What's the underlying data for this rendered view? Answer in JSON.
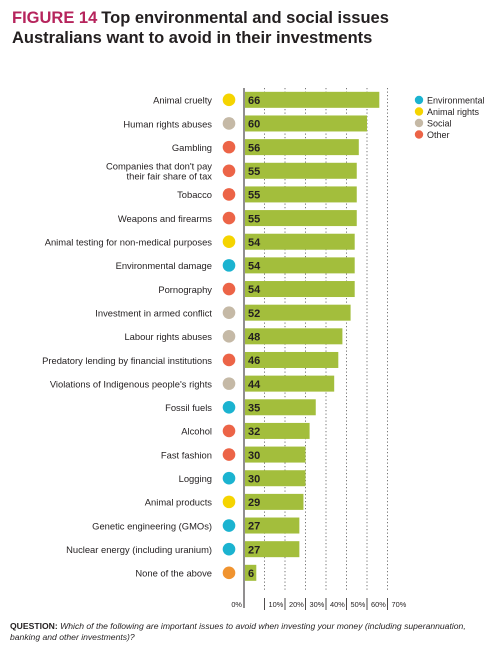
{
  "figure_label": "FIGURE 14",
  "title": "Top environmental and social issues Australians want to avoid in their investments",
  "question_label": "QUESTION:",
  "question_text": "Which of the following are important issues to avoid when investing your money (including superannuation, banking and other investments)?",
  "colors": {
    "bar": "#a3be3c",
    "category_colors": {
      "Environmental": "#1bb3d0",
      "Animal rights": "#f5d400",
      "Social": "#c5b9a6",
      "Other": "#ec6447"
    },
    "none_color": "#f0932f",
    "axis": "#231f20",
    "label_text": "#231f20"
  },
  "chart_data": {
    "type": "bar",
    "orientation": "horizontal",
    "categories": [
      [
        "Animal cruelty"
      ],
      [
        "Human rights abuses"
      ],
      [
        "Gambling"
      ],
      [
        "Companies that don't pay",
        "their fair share of tax"
      ],
      [
        "Tobacco"
      ],
      [
        "Weapons and firearms"
      ],
      [
        "Animal testing for non-medical purposes"
      ],
      [
        "Environmental damage"
      ],
      [
        "Pornography"
      ],
      [
        "Investment in armed conflict"
      ],
      [
        "Labour rights abuses"
      ],
      [
        "Predatory lending by financial institutions"
      ],
      [
        "Violations of Indigenous people's rights"
      ],
      [
        "Fossil fuels"
      ],
      [
        "Alcohol"
      ],
      [
        "Fast fashion"
      ],
      [
        "Logging"
      ],
      [
        "Animal products"
      ],
      [
        "Genetic engineering (GMOs)"
      ],
      [
        "Nuclear energy (including uranium)"
      ],
      [
        "None of the above"
      ]
    ],
    "values": [
      66,
      60,
      56,
      55,
      55,
      55,
      54,
      54,
      54,
      52,
      48,
      46,
      44,
      35,
      32,
      30,
      30,
      29,
      27,
      27,
      6
    ],
    "issue_type": [
      "Animal rights",
      "Social",
      "Other",
      "Other",
      "Other",
      "Other",
      "Animal rights",
      "Environmental",
      "Other",
      "Social",
      "Social",
      "Other",
      "Social",
      "Environmental",
      "Other",
      "Other",
      "Environmental",
      "Animal rights",
      "Environmental",
      "Environmental",
      "None"
    ],
    "x_ticks": [
      "0%",
      "10%",
      "20%",
      "30%",
      "40%",
      "50%",
      "60%",
      "70%"
    ],
    "xlim": [
      0,
      70
    ],
    "legend": [
      "Environmental",
      "Animal rights",
      "Social",
      "Other"
    ],
    "legend_position": "top-right",
    "grid": true
  }
}
